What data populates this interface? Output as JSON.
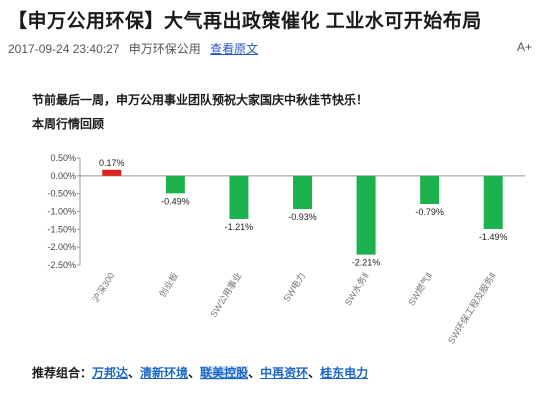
{
  "article": {
    "title": "【申万公用环保】大气再出政策催化 工业水可开始布局",
    "date": "2017-09-24 23:40:27",
    "source": "申万环保公用",
    "view_original": "查看原文",
    "font_toggle": "A+"
  },
  "body": {
    "greeting": "节前最后一周，申万公用事业团队预祝大家国庆中秋佳节快乐！",
    "section_title": "本周行情回顾"
  },
  "recommend": {
    "label": "推荐组合：",
    "stocks": [
      "万邦达",
      "清新环境",
      "联美控股",
      "中再资环",
      "桂东电力"
    ],
    "separator": "、"
  },
  "colors": {
    "positive": "#e0201d",
    "negative": "#1db24e",
    "link": "#1c67c4"
  },
  "chart_data": {
    "type": "bar",
    "categories": [
      "沪深300",
      "创业板",
      "SW公用事业",
      "SW电力",
      "SW水务Ⅱ",
      "SW燃气Ⅱ",
      "SW环保工程及服务Ⅱ"
    ],
    "values": [
      0.17,
      -0.49,
      -1.21,
      -0.93,
      -2.21,
      -0.79,
      -1.49
    ],
    "data_labels": [
      "0.17%",
      "-0.49%",
      "-1.21%",
      "-0.93%",
      "-2.21%",
      "-0.79%",
      "-1.49%"
    ],
    "ylim": [
      -2.5,
      0.5
    ],
    "yticks": [
      0.5,
      0,
      -0.5,
      -1.0,
      -1.5,
      -2.0,
      -2.5
    ],
    "ytick_labels": [
      "0.50%",
      "0.00%",
      "-0.50%",
      "-1.00%",
      "-1.50%",
      "-2.00%",
      "-2.50%"
    ],
    "grid": false,
    "title": "",
    "xlabel": "",
    "ylabel": ""
  }
}
